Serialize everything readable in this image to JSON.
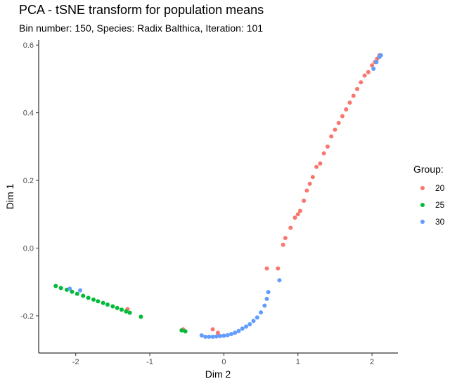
{
  "chart_data": {
    "type": "scatter",
    "title": "PCA - tSNE transform for population means",
    "subtitle": "Bin number: 150, Species: Radix Balthica, Iteration: 101",
    "xlabel": "Dim 2",
    "ylabel": "Dim 1",
    "xlim": [
      -2.5,
      2.35
    ],
    "ylim": [
      -0.31,
      0.615
    ],
    "x_ticks": [
      -2,
      -1,
      0,
      1,
      2
    ],
    "y_ticks": [
      -0.2,
      0.0,
      0.2,
      0.4,
      0.6
    ],
    "x_tick_labels": [
      "-2",
      "-1",
      "0",
      "1",
      "2"
    ],
    "y_tick_labels": [
      "-0.2",
      "0.0",
      "0.2",
      "0.4",
      "0.6"
    ],
    "grid": false,
    "legend": {
      "title": "Group:",
      "position": "right"
    },
    "series": [
      {
        "name": "20",
        "color": "#F8766D",
        "x": [
          -1.3,
          -0.55,
          -0.15,
          -0.08,
          0.58,
          0.73,
          0.8,
          0.83,
          0.9,
          0.96,
          1.0,
          1.03,
          1.08,
          1.12,
          1.16,
          1.2,
          1.25,
          1.3,
          1.35,
          1.4,
          1.45,
          1.5,
          1.55,
          1.6,
          1.65,
          1.7,
          1.75,
          1.8,
          1.85,
          1.9,
          1.95,
          2.0,
          2.04,
          2.07,
          2.1
        ],
        "y": [
          -0.18,
          -0.24,
          -0.24,
          -0.25,
          -0.06,
          -0.06,
          0.01,
          0.03,
          0.06,
          0.09,
          0.1,
          0.11,
          0.14,
          0.17,
          0.19,
          0.21,
          0.24,
          0.25,
          0.28,
          0.3,
          0.33,
          0.35,
          0.37,
          0.39,
          0.41,
          0.43,
          0.45,
          0.47,
          0.49,
          0.51,
          0.52,
          0.54,
          0.55,
          0.56,
          0.57
        ]
      },
      {
        "name": "25",
        "color": "#00BA38",
        "x": [
          -2.27,
          -2.2,
          -2.12,
          -2.05,
          -1.98,
          -1.9,
          -1.83,
          -1.76,
          -1.7,
          -1.63,
          -1.57,
          -1.5,
          -1.44,
          -1.38,
          -1.32,
          -1.27,
          -1.12,
          -0.57,
          -0.52
        ],
        "y": [
          -0.112,
          -0.118,
          -0.123,
          -0.129,
          -0.135,
          -0.141,
          -0.147,
          -0.152,
          -0.157,
          -0.162,
          -0.167,
          -0.172,
          -0.177,
          -0.182,
          -0.187,
          -0.191,
          -0.203,
          -0.243,
          -0.246
        ]
      },
      {
        "name": "30",
        "color": "#619CFF",
        "x": [
          -2.08,
          -1.94,
          -0.3,
          -0.25,
          -0.2,
          -0.15,
          -0.1,
          -0.05,
          0.0,
          0.05,
          0.1,
          0.15,
          0.2,
          0.25,
          0.3,
          0.35,
          0.4,
          0.45,
          0.5,
          0.55,
          0.58,
          0.6,
          0.75,
          2.02,
          2.06,
          2.1,
          2.12
        ],
        "y": [
          -0.12,
          -0.125,
          -0.258,
          -0.262,
          -0.262,
          -0.262,
          -0.261,
          -0.26,
          -0.259,
          -0.257,
          -0.254,
          -0.25,
          -0.245,
          -0.238,
          -0.232,
          -0.225,
          -0.215,
          -0.205,
          -0.19,
          -0.17,
          -0.15,
          -0.13,
          -0.095,
          0.53,
          0.55,
          0.565,
          0.57
        ]
      }
    ]
  }
}
